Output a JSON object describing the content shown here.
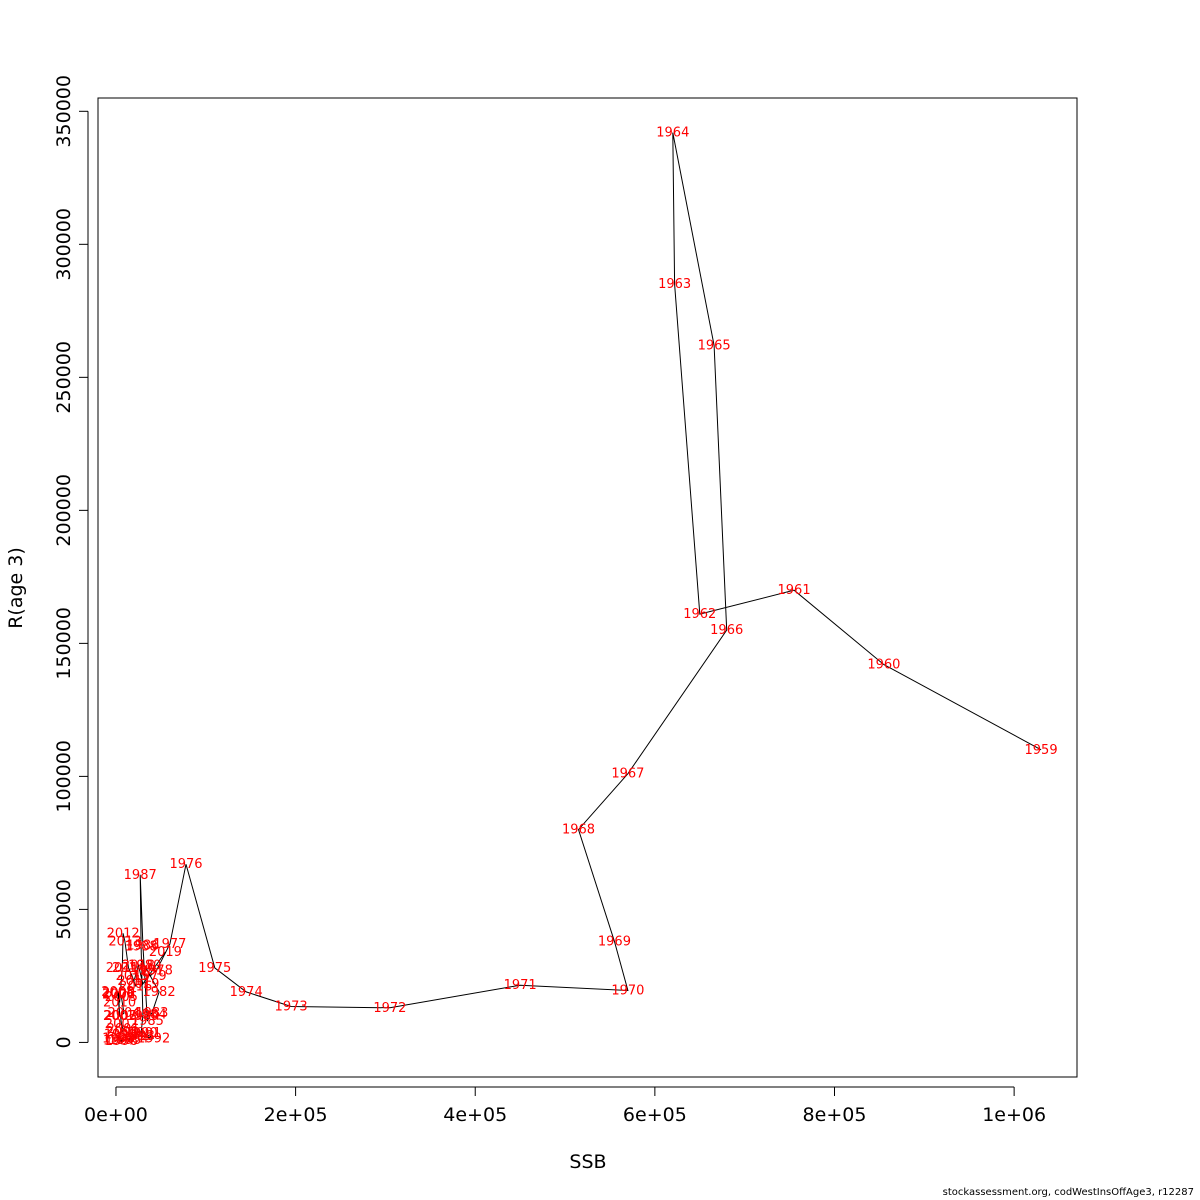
{
  "chart_data": {
    "type": "line",
    "xlabel": "SSB",
    "ylabel": "R(age 3)",
    "xlim": [
      -20000,
      1070000
    ],
    "ylim": [
      -13000,
      355000
    ],
    "x_ticks": [
      {
        "value": 0,
        "label": "0e+00"
      },
      {
        "value": 200000,
        "label": "2e+05"
      },
      {
        "value": 400000,
        "label": "4e+05"
      },
      {
        "value": 600000,
        "label": "6e+05"
      },
      {
        "value": 800000,
        "label": "8e+05"
      },
      {
        "value": 1000000,
        "label": "1e+06"
      }
    ],
    "y_ticks": [
      {
        "value": 0,
        "label": "0"
      },
      {
        "value": 50000,
        "label": "50000"
      },
      {
        "value": 100000,
        "label": "100000"
      },
      {
        "value": 150000,
        "label": "150000"
      },
      {
        "value": 200000,
        "label": "200000"
      },
      {
        "value": 250000,
        "label": "250000"
      },
      {
        "value": 300000,
        "label": "300000"
      },
      {
        "value": 350000,
        "label": "350000"
      }
    ],
    "points": [
      {
        "year": "1959",
        "x": 1030000,
        "y": 110000
      },
      {
        "year": "1960",
        "x": 855000,
        "y": 142000
      },
      {
        "year": "1961",
        "x": 755000,
        "y": 170000
      },
      {
        "year": "1962",
        "x": 650000,
        "y": 161000
      },
      {
        "year": "1963",
        "x": 622000,
        "y": 285000
      },
      {
        "year": "1964",
        "x": 620000,
        "y": 342000
      },
      {
        "year": "1965",
        "x": 666000,
        "y": 262000
      },
      {
        "year": "1966",
        "x": 680000,
        "y": 155000
      },
      {
        "year": "1967",
        "x": 570000,
        "y": 101000
      },
      {
        "year": "1968",
        "x": 515000,
        "y": 80000
      },
      {
        "year": "1969",
        "x": 555000,
        "y": 38000
      },
      {
        "year": "1970",
        "x": 570000,
        "y": 19500
      },
      {
        "year": "1971",
        "x": 450000,
        "y": 21500
      },
      {
        "year": "1972",
        "x": 305000,
        "y": 13000
      },
      {
        "year": "1973",
        "x": 195000,
        "y": 13500
      },
      {
        "year": "1974",
        "x": 145000,
        "y": 19000
      },
      {
        "year": "1975",
        "x": 110000,
        "y": 28000
      },
      {
        "year": "1976",
        "x": 78000,
        "y": 67000
      },
      {
        "year": "1977",
        "x": 60000,
        "y": 37000
      },
      {
        "year": "1978",
        "x": 45000,
        "y": 27000
      },
      {
        "year": "1979",
        "x": 38000,
        "y": 25000
      },
      {
        "year": "1980",
        "x": 32000,
        "y": 29000
      },
      {
        "year": "1981",
        "x": 35000,
        "y": 27000
      },
      {
        "year": "1982",
        "x": 48000,
        "y": 19000
      },
      {
        "year": "1983",
        "x": 40000,
        "y": 11000
      },
      {
        "year": "1984",
        "x": 38000,
        "y": 10500
      },
      {
        "year": "1985",
        "x": 35000,
        "y": 8000
      },
      {
        "year": "1986",
        "x": 30000,
        "y": 36500
      },
      {
        "year": "1987",
        "x": 27000,
        "y": 63000
      },
      {
        "year": "1988",
        "x": 28000,
        "y": 36000
      },
      {
        "year": "1989",
        "x": 30000,
        "y": 10000
      },
      {
        "year": "1990",
        "x": 28000,
        "y": 3500
      },
      {
        "year": "1991",
        "x": 32000,
        "y": 3500
      },
      {
        "year": "1992",
        "x": 42000,
        "y": 1500
      },
      {
        "year": "1993",
        "x": 25000,
        "y": 2500
      },
      {
        "year": "1994",
        "x": 18000,
        "y": 1500
      },
      {
        "year": "1995",
        "x": 10000,
        "y": 1000
      },
      {
        "year": "1996",
        "x": 6000,
        "y": 500
      },
      {
        "year": "1997",
        "x": 4000,
        "y": 800
      },
      {
        "year": "1998",
        "x": 3000,
        "y": 1500
      },
      {
        "year": "1999",
        "x": 5000,
        "y": 3000
      },
      {
        "year": "2000",
        "x": 7000,
        "y": 4000
      },
      {
        "year": "2001",
        "x": 8000,
        "y": 5000
      },
      {
        "year": "2002",
        "x": 6000,
        "y": 7000
      },
      {
        "year": "2003",
        "x": 5000,
        "y": 10000
      },
      {
        "year": "2004",
        "x": 9000,
        "y": 11000
      },
      {
        "year": "2005",
        "x": 6000,
        "y": 17000
      },
      {
        "year": "2006",
        "x": 3000,
        "y": 18000
      },
      {
        "year": "2007",
        "x": 4000,
        "y": 10000
      },
      {
        "year": "2008",
        "x": 2000,
        "y": 19000
      },
      {
        "year": "2009",
        "x": 3000,
        "y": 18500
      },
      {
        "year": "2010",
        "x": 4000,
        "y": 15000
      },
      {
        "year": "2011",
        "x": 7000,
        "y": 28000
      },
      {
        "year": "2012",
        "x": 8000,
        "y": 41000
      },
      {
        "year": "2013",
        "x": 10000,
        "y": 38000
      },
      {
        "year": "2014",
        "x": 14000,
        "y": 28000
      },
      {
        "year": "2015",
        "x": 18000,
        "y": 25000
      },
      {
        "year": "2016",
        "x": 22000,
        "y": 21000
      },
      {
        "year": "2017",
        "x": 20000,
        "y": 23000
      },
      {
        "year": "2018",
        "x": 25000,
        "y": 29000
      },
      {
        "year": "2019",
        "x": 30000,
        "y": 22000
      },
      {
        "year": "2019",
        "x": 55000,
        "y": 34000
      }
    ]
  },
  "footer_text": "stockassessment.org, codWestInsOffAge3, r12287",
  "colors": {
    "label": "#ff0000",
    "line": "#000000",
    "axis": "#000000"
  }
}
